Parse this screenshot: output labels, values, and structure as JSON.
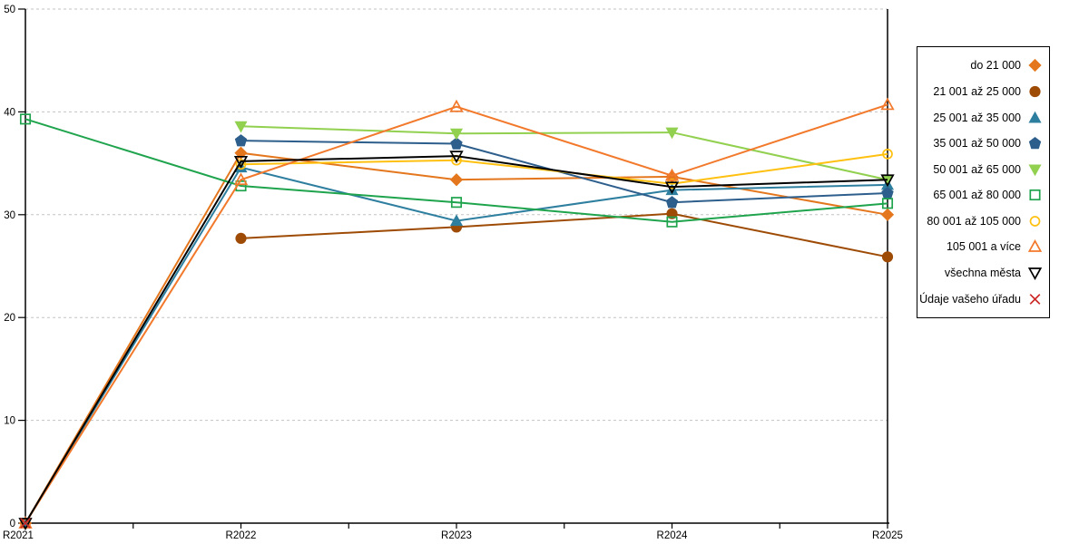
{
  "chart_data": {
    "type": "line",
    "title": "",
    "xlabel": "",
    "ylabel": "",
    "x": [
      "R2021",
      "R2022",
      "R2023",
      "R2024",
      "R2025"
    ],
    "ylim": [
      0,
      50
    ],
    "yticks": [
      0,
      10,
      20,
      30,
      40,
      50
    ],
    "grid": "dashed-horizontal",
    "legend_position": "right-outside-boxed",
    "axis_color": "#000000",
    "grid_color": "#c3c3c3",
    "series": [
      {
        "name": "do 21 000",
        "marker": "diamond",
        "fill": true,
        "color": "#E4771D",
        "values": [
          0,
          36.0,
          33.4,
          33.7,
          30.0
        ]
      },
      {
        "name": "21 001 až 25 000",
        "marker": "circle",
        "fill": true,
        "color": "#9E4B06",
        "values": [
          null,
          27.7,
          28.8,
          30.1,
          25.9
        ]
      },
      {
        "name": "25 001 až 35 000",
        "marker": "triangle-up",
        "fill": true,
        "color": "#2E7F9F",
        "values": [
          0,
          34.6,
          29.4,
          32.4,
          32.9
        ]
      },
      {
        "name": "35 001 až 50 000",
        "marker": "pentagon",
        "fill": true,
        "color": "#2D5E8C",
        "values": [
          null,
          37.2,
          36.9,
          31.2,
          32.1
        ]
      },
      {
        "name": "50 001 až 65 000",
        "marker": "triangle-down",
        "fill": true,
        "color": "#92D050",
        "values": [
          null,
          38.6,
          37.9,
          38.0,
          33.4
        ]
      },
      {
        "name": "65 001 až 80 000",
        "marker": "square",
        "fill": false,
        "color": "#1FA44D",
        "values": [
          39.3,
          32.8,
          31.2,
          29.3,
          31.1
        ]
      },
      {
        "name": "80 001 až 105 000",
        "marker": "circle",
        "fill": false,
        "color": "#FFC010",
        "values": [
          null,
          34.9,
          35.3,
          33.0,
          35.9
        ]
      },
      {
        "name": "105 001 a více",
        "marker": "triangle-up",
        "fill": false,
        "color": "#F2792B",
        "values": [
          0,
          33.4,
          40.5,
          33.8,
          40.7
        ]
      },
      {
        "name": "všechna města",
        "marker": "triangle-down",
        "fill": false,
        "color": "#000000",
        "values": [
          0,
          35.2,
          35.7,
          32.7,
          33.4
        ]
      },
      {
        "name": "Údaje vašeho úřadu",
        "marker": "x",
        "fill": false,
        "color": "#CB2927",
        "values": [
          0,
          null,
          null,
          null,
          null
        ]
      }
    ]
  }
}
